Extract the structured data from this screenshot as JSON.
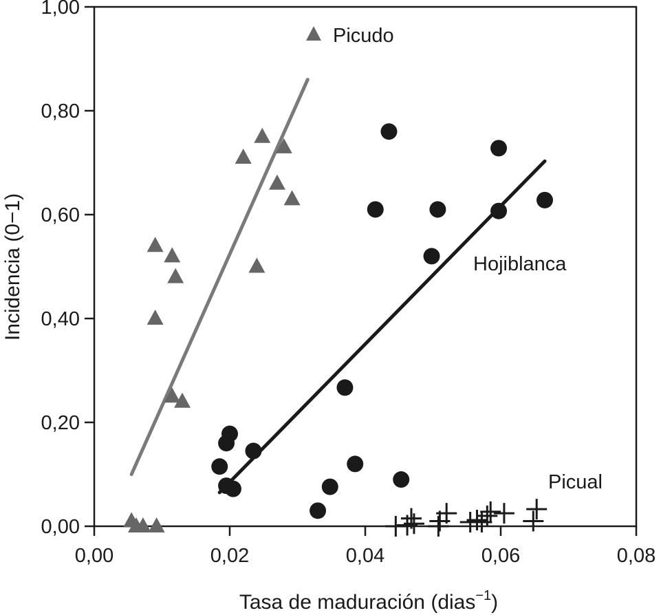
{
  "chart_data": {
    "type": "scatter",
    "xlabel": "Tasa de maduración (dias",
    "xlabel_superscript": "−1",
    "xlabel_suffix": ")",
    "ylabel": "Incidencia (0−1)",
    "xlim": [
      0.0,
      0.08
    ],
    "ylim": [
      0.0,
      1.0
    ],
    "x_ticks": [
      0.0,
      0.02,
      0.04,
      0.06,
      0.08
    ],
    "x_tick_labels": [
      "0,00",
      "0,02",
      "0,04",
      "0,06",
      "0,08"
    ],
    "y_ticks": [
      0.0,
      0.2,
      0.4,
      0.6,
      0.8,
      1.0
    ],
    "y_tick_labels": [
      "0,00",
      "0,20",
      "0,40",
      "0,60",
      "0,80",
      "1,00"
    ],
    "grid": false,
    "series": [
      {
        "name": "Picudo",
        "marker": "triangle",
        "color": "#666666",
        "points": [
          {
            "x": 0.0055,
            "y": 0.01
          },
          {
            "x": 0.0062,
            "y": 0.0
          },
          {
            "x": 0.0072,
            "y": 0.0
          },
          {
            "x": 0.0092,
            "y": 0.0
          },
          {
            "x": 0.009,
            "y": 0.4
          },
          {
            "x": 0.009,
            "y": 0.54
          },
          {
            "x": 0.0115,
            "y": 0.52
          },
          {
            "x": 0.012,
            "y": 0.48
          },
          {
            "x": 0.0115,
            "y": 0.25
          },
          {
            "x": 0.013,
            "y": 0.24
          },
          {
            "x": 0.022,
            "y": 0.71
          },
          {
            "x": 0.024,
            "y": 0.5
          },
          {
            "x": 0.0248,
            "y": 0.75
          },
          {
            "x": 0.027,
            "y": 0.66
          },
          {
            "x": 0.028,
            "y": 0.73
          },
          {
            "x": 0.0292,
            "y": 0.63
          }
        ],
        "fit": {
          "x": [
            0.0055,
            0.0315
          ],
          "y": [
            0.1,
            0.86
          ]
        },
        "fit_color": "#7a7a7a"
      },
      {
        "name": "Hojiblanca",
        "marker": "circle",
        "color": "#1a1a1a",
        "points": [
          {
            "x": 0.0185,
            "y": 0.115
          },
          {
            "x": 0.0195,
            "y": 0.16
          },
          {
            "x": 0.02,
            "y": 0.178
          },
          {
            "x": 0.0195,
            "y": 0.078
          },
          {
            "x": 0.0205,
            "y": 0.072
          },
          {
            "x": 0.0235,
            "y": 0.145
          },
          {
            "x": 0.033,
            "y": 0.03
          },
          {
            "x": 0.0348,
            "y": 0.076
          },
          {
            "x": 0.037,
            "y": 0.267
          },
          {
            "x": 0.0385,
            "y": 0.12
          },
          {
            "x": 0.0415,
            "y": 0.61
          },
          {
            "x": 0.0435,
            "y": 0.76
          },
          {
            "x": 0.0453,
            "y": 0.09
          },
          {
            "x": 0.0498,
            "y": 0.52
          },
          {
            "x": 0.0507,
            "y": 0.61
          },
          {
            "x": 0.0597,
            "y": 0.607
          },
          {
            "x": 0.0597,
            "y": 0.728
          },
          {
            "x": 0.0665,
            "y": 0.628
          }
        ],
        "fit": {
          "x": [
            0.0185,
            0.0665
          ],
          "y": [
            0.065,
            0.703
          ]
        },
        "fit_color": "#1a1a1a"
      },
      {
        "name": "Picual",
        "marker": "plus",
        "color": "#1a1a1a",
        "points": [
          {
            "x": 0.0445,
            "y": 0.0
          },
          {
            "x": 0.0462,
            "y": 0.002
          },
          {
            "x": 0.0468,
            "y": 0.015
          },
          {
            "x": 0.0472,
            "y": 0.005
          },
          {
            "x": 0.0508,
            "y": 0.0
          },
          {
            "x": 0.051,
            "y": 0.01
          },
          {
            "x": 0.052,
            "y": 0.025
          },
          {
            "x": 0.0555,
            "y": 0.008
          },
          {
            "x": 0.0565,
            "y": 0.012
          },
          {
            "x": 0.0572,
            "y": 0.008
          },
          {
            "x": 0.058,
            "y": 0.02
          },
          {
            "x": 0.0585,
            "y": 0.028
          },
          {
            "x": 0.0605,
            "y": 0.025
          },
          {
            "x": 0.0648,
            "y": 0.01
          },
          {
            "x": 0.0653,
            "y": 0.033
          }
        ]
      }
    ],
    "annotations": [
      {
        "text": "Picudo",
        "series": "Picudo"
      },
      {
        "text": "Hojiblanca",
        "series": "Hojiblanca"
      },
      {
        "text": "Picual",
        "series": "Picual"
      }
    ]
  }
}
